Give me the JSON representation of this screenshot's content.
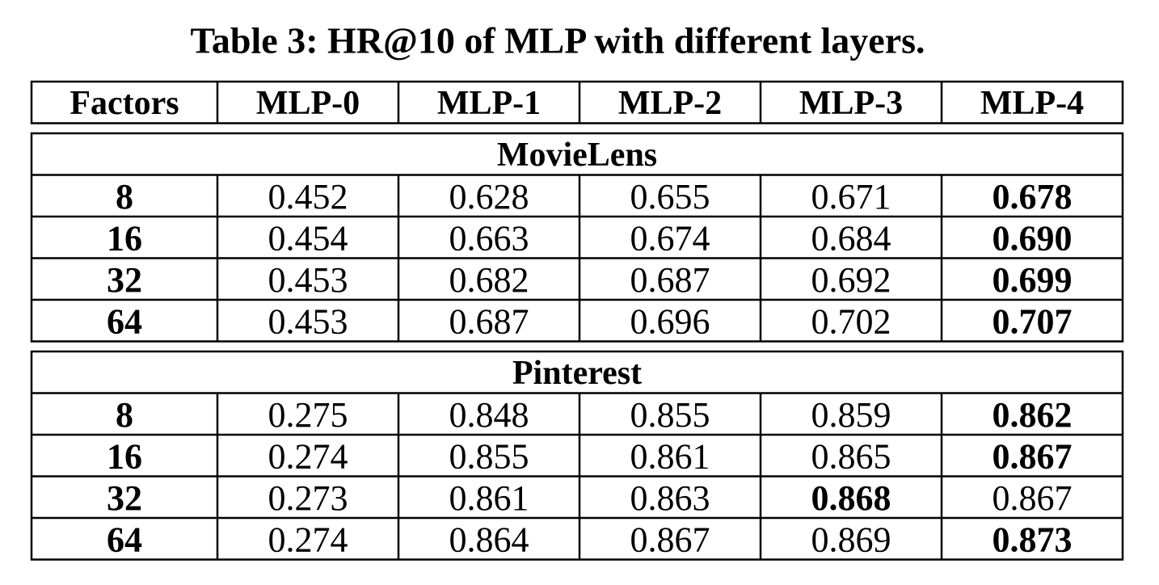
{
  "title": "Table 3: HR@10 of MLP with different layers.",
  "table": {
    "header": [
      "Factors",
      "MLP-0",
      "MLP-1",
      "MLP-2",
      "MLP-3",
      "MLP-4"
    ],
    "sections": [
      {
        "label": "MovieLens",
        "rows": [
          [
            "8",
            "0.452",
            "0.628",
            "0.655",
            "0.671",
            "0.678"
          ],
          [
            "16",
            "0.454",
            "0.663",
            "0.674",
            "0.684",
            "0.690"
          ],
          [
            "32",
            "0.453",
            "0.682",
            "0.687",
            "0.692",
            "0.699"
          ],
          [
            "64",
            "0.453",
            "0.687",
            "0.696",
            "0.702",
            "0.707"
          ]
        ],
        "bold_column": [
          5,
          5,
          5,
          5
        ]
      },
      {
        "label": "Pinterest",
        "rows": [
          [
            "8",
            "0.275",
            "0.848",
            "0.855",
            "0.859",
            "0.862"
          ],
          [
            "16",
            "0.274",
            "0.855",
            "0.861",
            "0.865",
            "0.867"
          ],
          [
            "32",
            "0.273",
            "0.861",
            "0.863",
            "0.868",
            "0.867"
          ],
          [
            "64",
            "0.274",
            "0.864",
            "0.867",
            "0.869",
            "0.873"
          ]
        ],
        "bold_column": [
          5,
          5,
          4,
          5
        ]
      }
    ]
  }
}
